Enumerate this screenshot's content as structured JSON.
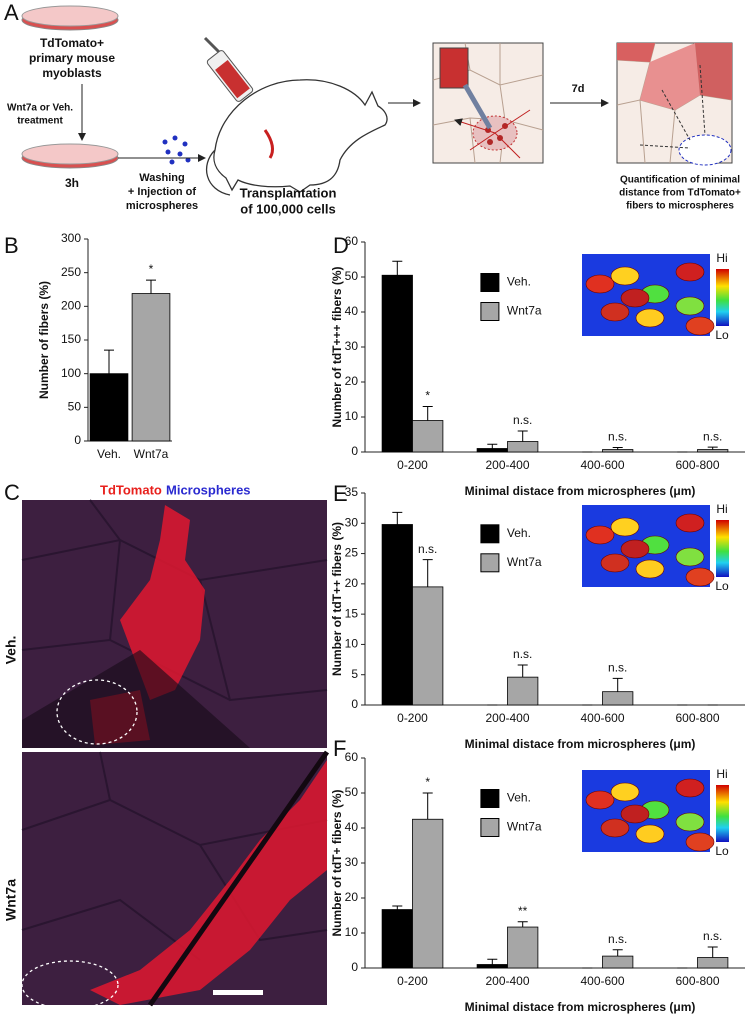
{
  "panel_a": {
    "letter": "A",
    "cells_label": [
      "TdTomato+",
      "primary mouse",
      "myoblasts"
    ],
    "treatment": [
      "Wnt7a or Veh.",
      "treatment"
    ],
    "incubation": "3h",
    "injection": [
      "Washing",
      "+ Injection of",
      "microspheres"
    ],
    "transplant": [
      "Transplantation",
      "of 100,000 cells"
    ],
    "interval": "7d",
    "quantification": [
      "Quantification of minimal",
      "distance from TdTomato+",
      "fibers to microspheres"
    ]
  },
  "panel_c": {
    "letter": "C",
    "stain_labels": [
      "TdTomato",
      "Microspheres"
    ],
    "conditions": [
      "Veh.",
      "Wnt7a"
    ]
  },
  "chart_data": [
    {
      "type": "bar",
      "panel": "B",
      "y_label": "Number of fibers (%)",
      "categories": [
        "Veh.",
        "Wnt7a"
      ],
      "values": [
        100,
        219
      ],
      "errors": [
        35,
        20
      ],
      "colors": [
        "#000000",
        "#a6a6a6"
      ],
      "labels": [
        null,
        "*"
      ],
      "ylim": [
        0,
        300
      ],
      "yticks": [
        0,
        50,
        100,
        150,
        200,
        250,
        300
      ]
    },
    {
      "type": "grouped-bar",
      "panel": "D",
      "y_label": "Number of tdT+++ fibers (%)",
      "x_label": "Minimal distace from microspheres (μm)",
      "categories": [
        "0-200",
        "200-400",
        "400-600",
        "600-800"
      ],
      "series": [
        {
          "name": "Veh.",
          "color": "#000000",
          "values": [
            50.5,
            1,
            0,
            0
          ],
          "errors": [
            4,
            1.2,
            0,
            0
          ]
        },
        {
          "name": "Wnt7a",
          "color": "#a6a6a6",
          "values": [
            9,
            3,
            0.7,
            0.7
          ],
          "errors": [
            4,
            3,
            0.6,
            0.7
          ],
          "labels": [
            "*",
            "n.s.",
            "n.s.",
            "n.s."
          ]
        }
      ],
      "ylim": [
        0,
        60
      ],
      "yticks": [
        0,
        10,
        20,
        30,
        40,
        50,
        60
      ],
      "legend": "upper-center",
      "colorbar_labels": [
        "Hi",
        "Lo"
      ]
    },
    {
      "type": "grouped-bar",
      "panel": "E",
      "y_label": "Number of tdT++ fibers (%)",
      "x_label": "Minimal distace from microspheres (μm)",
      "categories": [
        "0-200",
        "200-400",
        "400-600",
        "600-800"
      ],
      "series": [
        {
          "name": "Veh.",
          "color": "#000000",
          "values": [
            29.8,
            0,
            0,
            0
          ],
          "errors": [
            2,
            0,
            0,
            0
          ]
        },
        {
          "name": "Wnt7a",
          "color": "#a6a6a6",
          "values": [
            19.5,
            4.6,
            2.2,
            0
          ],
          "errors": [
            4.5,
            2,
            2.2,
            0
          ],
          "labels": [
            "n.s.",
            "n.s.",
            "n.s.",
            null
          ]
        }
      ],
      "ylim": [
        0,
        35
      ],
      "yticks": [
        0,
        5,
        10,
        15,
        20,
        25,
        30,
        35
      ],
      "legend": "upper-center",
      "colorbar_labels": [
        "Hi",
        "Lo"
      ]
    },
    {
      "type": "grouped-bar",
      "panel": "F",
      "y_label": "Number of tdT+ fibers (%)",
      "x_label": "Minimal distace from microspheres (μm)",
      "categories": [
        "0-200",
        "200-400",
        "400-600",
        "600-800"
      ],
      "series": [
        {
          "name": "Veh.",
          "color": "#000000",
          "values": [
            16.7,
            1,
            0,
            0
          ],
          "errors": [
            1,
            1.5,
            0,
            0
          ]
        },
        {
          "name": "Wnt7a",
          "color": "#a6a6a6",
          "values": [
            42.5,
            11.7,
            3.4,
            3
          ],
          "errors": [
            7.5,
            1.5,
            1.8,
            3
          ],
          "labels": [
            "*",
            "**",
            "n.s.",
            "n.s."
          ]
        }
      ],
      "ylim": [
        0,
        60
      ],
      "yticks": [
        0,
        10,
        20,
        30,
        40,
        50,
        60
      ],
      "legend": "upper-center",
      "colorbar_labels": [
        "Hi",
        "Lo"
      ]
    }
  ]
}
